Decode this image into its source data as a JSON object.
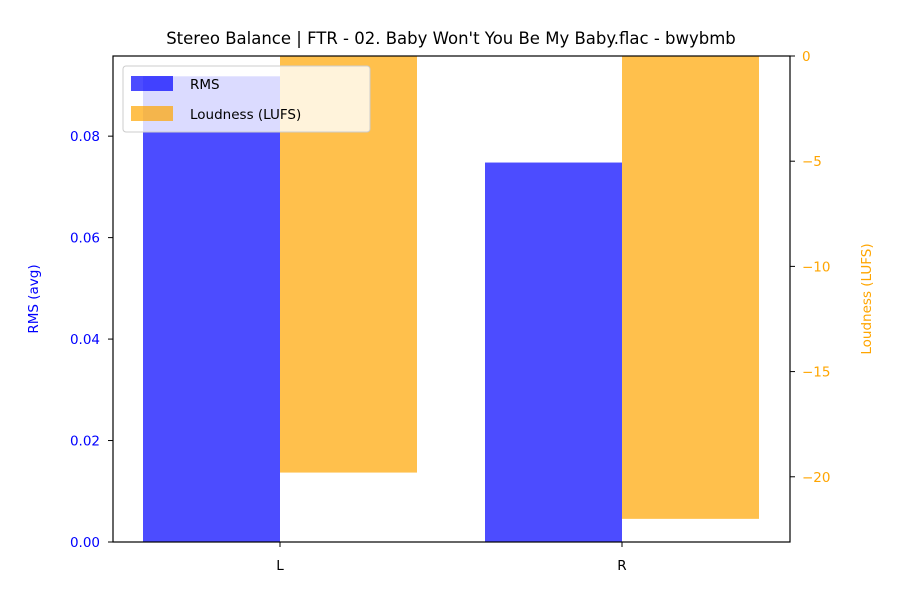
{
  "chart_data": {
    "type": "bar",
    "title": "Stereo Balance | FTR - 02. Baby Won't You Be My Baby.flac - bwybmb",
    "xlabel": "",
    "categories": [
      "L",
      "R"
    ],
    "series": [
      {
        "name": "RMS",
        "axis": "left",
        "values": [
          0.0918,
          0.0748
        ],
        "color": "#0000ff",
        "opacity": 0.7
      },
      {
        "name": "Loudness (LUFS)",
        "axis": "right",
        "values": [
          -19.8,
          -22.0
        ],
        "color": "#ffa500",
        "opacity": 0.7
      }
    ],
    "y_left": {
      "label": "RMS (avg)",
      "color": "#0000ff",
      "ylim": [
        0,
        0.0958
      ],
      "ticks": [
        0.0,
        0.02,
        0.04,
        0.06,
        0.08
      ],
      "tick_labels": [
        "0.00",
        "0.02",
        "0.04",
        "0.06",
        "0.08"
      ]
    },
    "y_right": {
      "label": "Loudness (LUFS)",
      "color": "#ffa500",
      "ylim": [
        -23.1,
        0
      ],
      "ticks": [
        -20,
        -15,
        -10,
        -5,
        0
      ],
      "tick_labels": [
        "−20",
        "−15",
        "−10",
        "−5",
        "0"
      ]
    },
    "grid": false,
    "legend": "top-left"
  }
}
